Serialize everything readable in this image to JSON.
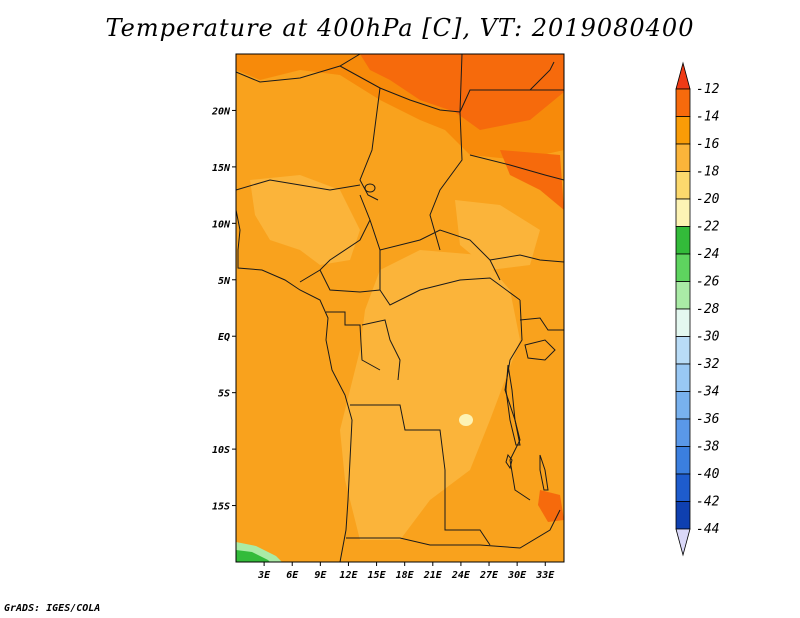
{
  "title": "Temperature at 400hPa [C], VT: 2019080400",
  "credit": "GrADS: IGES/COLA",
  "map": {
    "lat_labels": [
      "20N",
      "15N",
      "10N",
      "5N",
      "EQ",
      "5S",
      "10S",
      "15S"
    ],
    "lat_values": [
      20,
      15,
      10,
      5,
      0,
      -5,
      -10,
      -15
    ],
    "lon_labels": [
      "3E",
      "6E",
      "9E",
      "12E",
      "15E",
      "18E",
      "21E",
      "24E",
      "27E",
      "30E",
      "33E"
    ],
    "lon_values": [
      3,
      6,
      9,
      12,
      15,
      18,
      21,
      24,
      27,
      30,
      33
    ],
    "lat_range": [
      -20,
      25
    ],
    "lon_range": [
      0,
      35
    ]
  },
  "colorbar": {
    "labels": [
      "-12",
      "-14",
      "-16",
      "-18",
      "-20",
      "-22",
      "-24",
      "-26",
      "-28",
      "-30",
      "-32",
      "-34",
      "-36",
      "-38",
      "-40",
      "-42",
      "-44"
    ],
    "colors": [
      "#ef3b16",
      "#f76a0c",
      "#f99c07",
      "#fbb43a",
      "#fcd96d",
      "#fdf3b4",
      "#33bb3a",
      "#5ed45f",
      "#aaeba6",
      "#e4f8f0",
      "#b9dcf7",
      "#99c8f4",
      "#78b1ee",
      "#5a98e8",
      "#3b7fdf",
      "#1e5ccd",
      "#0f40b0",
      "#0b1c7a",
      "#dad8f8"
    ]
  },
  "fill_colors": {
    "base": "#f9a21d",
    "light": "#fbb43a",
    "warm": "#f78a0a",
    "hot": "#f66a0c",
    "green": "#33bb3a",
    "pale_green": "#aaeba6",
    "yellow": "#fdf3b4"
  }
}
